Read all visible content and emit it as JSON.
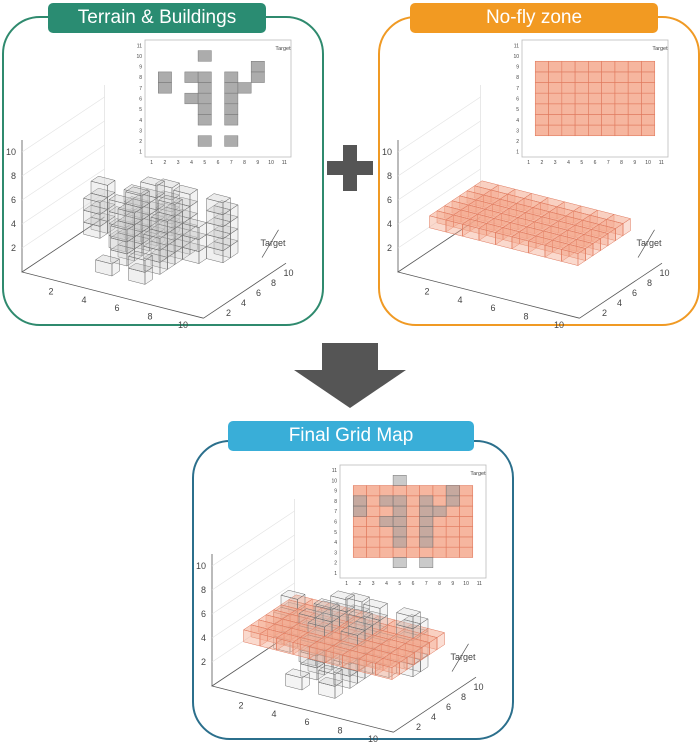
{
  "panels": {
    "terrain": {
      "title": "Terrain & Buildings",
      "color": "#2a8c72",
      "border": "#2f8a6e"
    },
    "nofly": {
      "title": "No-fly zone",
      "color": "#f29a22",
      "border": "#f09a24"
    },
    "final": {
      "title": "Final Grid Map",
      "color": "#39aed8",
      "border": "#2b6f8c"
    }
  },
  "operators": {
    "plus": "+",
    "arrow": "down-arrow"
  },
  "plot": {
    "target_label": "Target",
    "z_ticks": [
      "2",
      "4",
      "6",
      "8",
      "10"
    ],
    "x_ticks": [
      "2",
      "4",
      "6",
      "8",
      "10"
    ],
    "y_ticks": [
      "2",
      "4",
      "6",
      "8",
      "10"
    ],
    "inset_x_ticks": [
      "1",
      "2",
      "3",
      "4",
      "5",
      "6",
      "7",
      "8",
      "9",
      "10",
      "11"
    ],
    "inset_y_ticks": [
      "1",
      "2",
      "3",
      "4",
      "5",
      "6",
      "7",
      "8",
      "9",
      "10",
      "11"
    ]
  },
  "colors": {
    "building": "#9e9e9e",
    "nofly": "#f4a98e",
    "nofly_edge": "#e07a5f",
    "cube_edge": "#7a7a7a"
  }
}
